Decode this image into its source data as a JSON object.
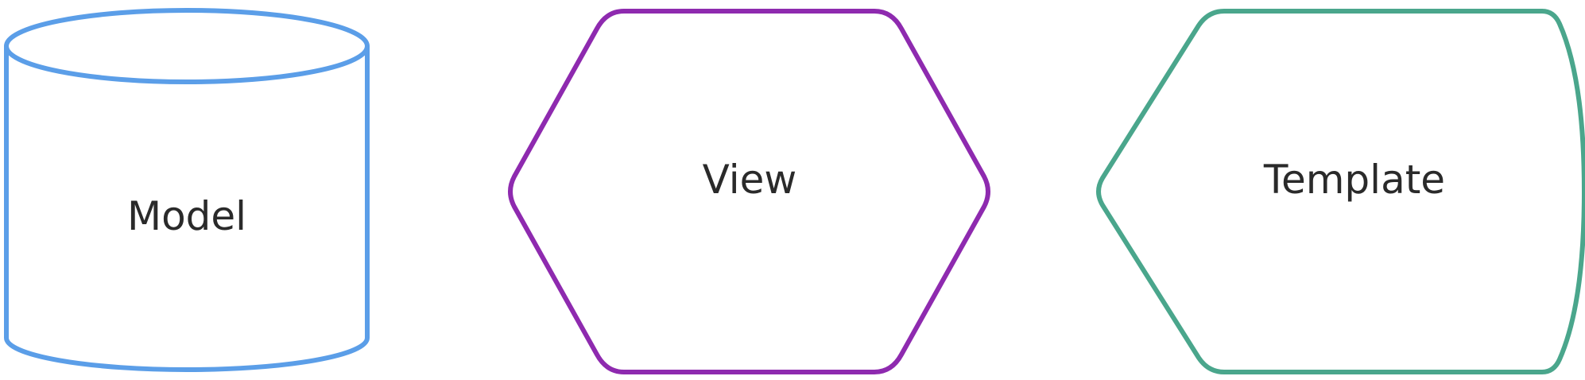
{
  "colors": {
    "model": "#5b9ee8",
    "view": "#8e2aaf",
    "template": "#4aa68c",
    "text": "#2a2a2a",
    "background": "#ffffff"
  },
  "shapes": {
    "model": {
      "label": "Model",
      "kind": "cylinder"
    },
    "view": {
      "label": "View",
      "kind": "hexagon"
    },
    "template": {
      "label": "Template",
      "kind": "display"
    }
  }
}
